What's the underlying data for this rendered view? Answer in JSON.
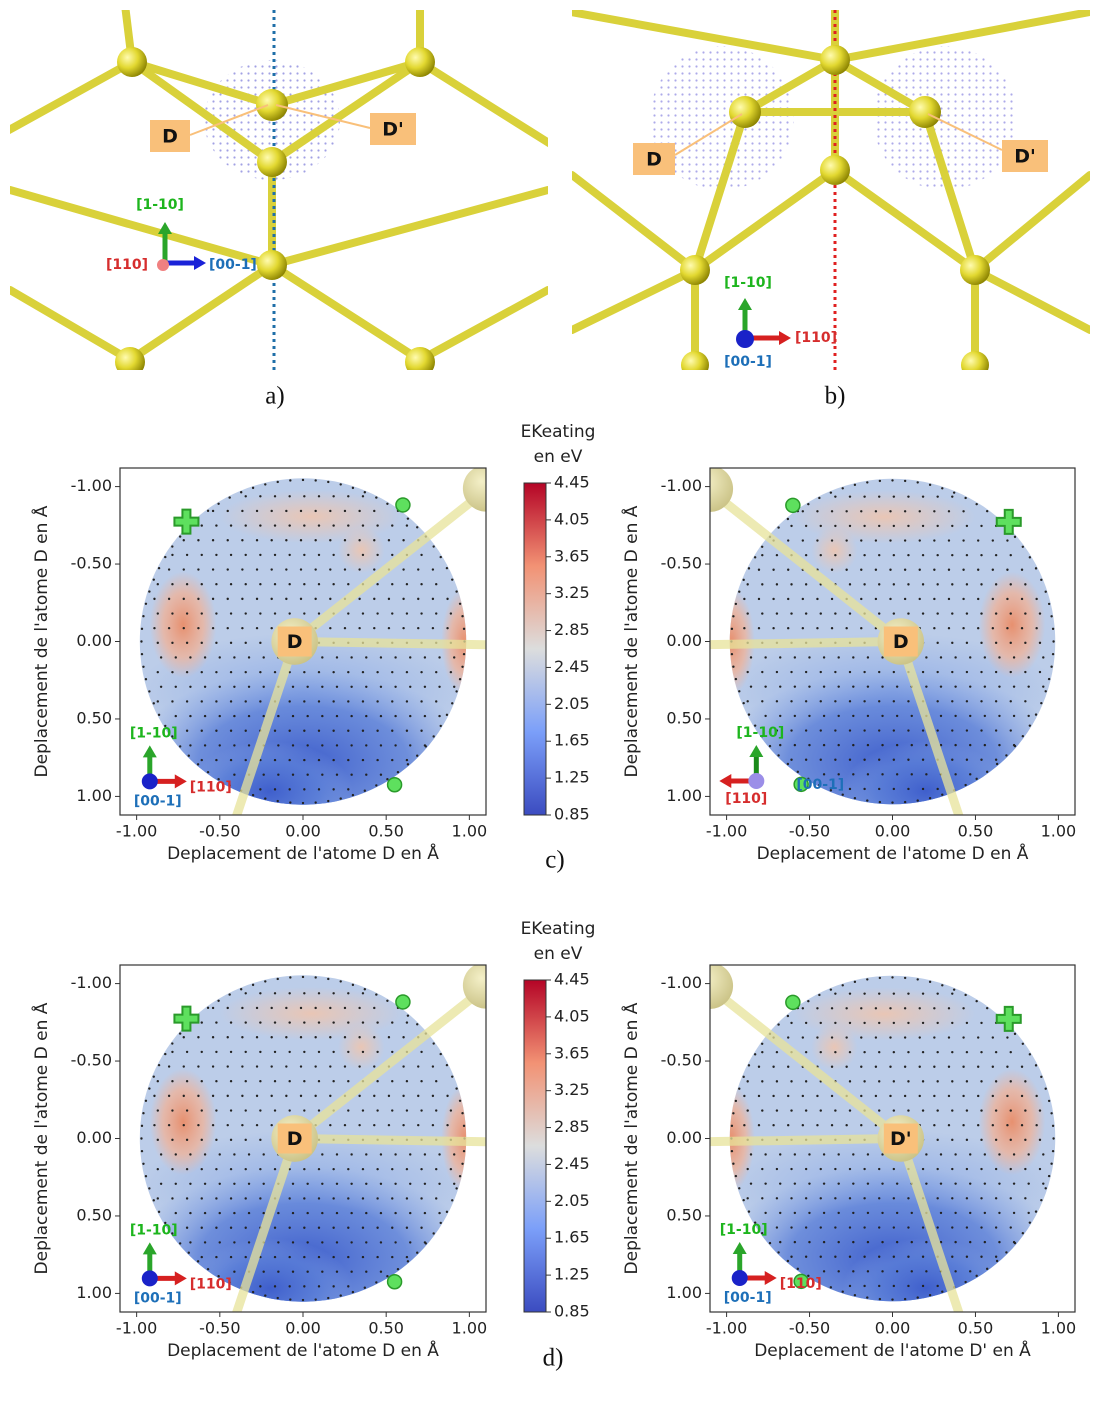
{
  "panels": [
    {
      "caption": "a)",
      "atoms": [
        "D",
        "D'"
      ],
      "axes": [
        "[1-10]",
        "[110]",
        "[00-1]"
      ]
    },
    {
      "caption": "b)",
      "atoms": [
        "D",
        "D'"
      ],
      "axes": [
        "[1-10]",
        "[110]",
        "[00-1]"
      ]
    }
  ],
  "captions": [
    "c)",
    "d)"
  ],
  "chart_data": [
    {
      "type": "contour",
      "xlabel": "Deplacement de l'atome D en Å",
      "ylabel": "Deplacement de l'atome D en Å",
      "xlim": [
        -1.1,
        1.1
      ],
      "ylim": [
        -1.12,
        1.12
      ],
      "xticks": [
        {
          "value": -1,
          "label": "-1.00"
        },
        {
          "value": -0.5,
          "label": "-0.50"
        },
        {
          "value": 0,
          "label": "0.00"
        },
        {
          "value": 0.5,
          "label": "0.50"
        },
        {
          "value": 1,
          "label": "1.00"
        }
      ],
      "yticks": [
        {
          "value": -1,
          "label": "-1.00"
        },
        {
          "value": -0.5,
          "label": "-0.50"
        },
        {
          "value": 0,
          "label": "0.00"
        },
        {
          "value": 0.5,
          "label": "0.50"
        },
        {
          "value": 1,
          "label": "1.00"
        }
      ],
      "atom": "D",
      "axes": [
        "[1-10]",
        "[110]",
        "[00-1]"
      ],
      "colorbar": {
        "title": "EKeating",
        "unit": "en eV",
        "clim": [
          0.85,
          4.45
        ],
        "ticks": [
          0.85,
          1.25,
          1.65,
          2.05,
          2.45,
          2.85,
          3.25,
          3.65,
          4.05,
          4.45
        ]
      }
    },
    {
      "type": "contour",
      "xlabel": "Deplacement de l'atome D en Å",
      "ylabel": "Deplacement de l'atome D en Å",
      "xlim": [
        -1.1,
        1.1
      ],
      "ylim": [
        -1.12,
        1.12
      ],
      "xticks": [
        {
          "value": -1,
          "label": "-1.00"
        },
        {
          "value": -0.5,
          "label": "-0.50"
        },
        {
          "value": 0,
          "label": "0.00"
        },
        {
          "value": 0.5,
          "label": "0.50"
        },
        {
          "value": 1,
          "label": "1.00"
        }
      ],
      "yticks": [
        {
          "value": -1,
          "label": "-1.00"
        },
        {
          "value": -0.5,
          "label": "-0.50"
        },
        {
          "value": 0,
          "label": "0.00"
        },
        {
          "value": 0.5,
          "label": "0.50"
        },
        {
          "value": 1,
          "label": "1.00"
        }
      ],
      "atom": "D",
      "axes": [
        "[1-10]",
        "[110]",
        "[00-1]"
      ]
    },
    {
      "type": "contour",
      "xlabel": "Deplacement de l'atome D en Å",
      "ylabel": "Deplacement de l'atome D en Å",
      "xlim": [
        -1.1,
        1.1
      ],
      "ylim": [
        -1.12,
        1.12
      ],
      "xticks": [
        {
          "value": -1,
          "label": "-1.00"
        },
        {
          "value": -0.5,
          "label": "-0.50"
        },
        {
          "value": 0,
          "label": "0.00"
        },
        {
          "value": 0.5,
          "label": "0.50"
        },
        {
          "value": 1,
          "label": "1.00"
        }
      ],
      "yticks": [
        {
          "value": -1,
          "label": "-1.00"
        },
        {
          "value": -0.5,
          "label": "-0.50"
        },
        {
          "value": 0,
          "label": "0.00"
        },
        {
          "value": 0.5,
          "label": "0.50"
        },
        {
          "value": 1,
          "label": "1.00"
        }
      ],
      "atom": "D",
      "axes": [
        "[1-10]",
        "[110]",
        "[00-1]"
      ],
      "colorbar": {
        "title": "EKeating",
        "unit": "en eV",
        "clim": [
          0.85,
          4.45
        ],
        "ticks": [
          0.85,
          1.25,
          1.65,
          2.05,
          2.45,
          2.85,
          3.25,
          3.65,
          4.05,
          4.45
        ]
      }
    },
    {
      "type": "contour",
      "xlabel": "Deplacement de l'atome D' en Å",
      "ylabel": "Deplacement de l'atome D en Å",
      "xlim": [
        -1.1,
        1.1
      ],
      "ylim": [
        -1.12,
        1.12
      ],
      "xticks": [
        {
          "value": -1,
          "label": "-1.00"
        },
        {
          "value": -0.5,
          "label": "-0.50"
        },
        {
          "value": 0,
          "label": "0.00"
        },
        {
          "value": 0.5,
          "label": "0.50"
        },
        {
          "value": 1,
          "label": "1.00"
        }
      ],
      "yticks": [
        {
          "value": -1,
          "label": "-1.00"
        },
        {
          "value": -0.5,
          "label": "-0.50"
        },
        {
          "value": 0,
          "label": "0.00"
        },
        {
          "value": 0.5,
          "label": "0.50"
        },
        {
          "value": 1,
          "label": "1.00"
        }
      ],
      "atom": "D'",
      "axes": [
        "[1-10]",
        "[110]",
        "[00-1]"
      ]
    }
  ]
}
